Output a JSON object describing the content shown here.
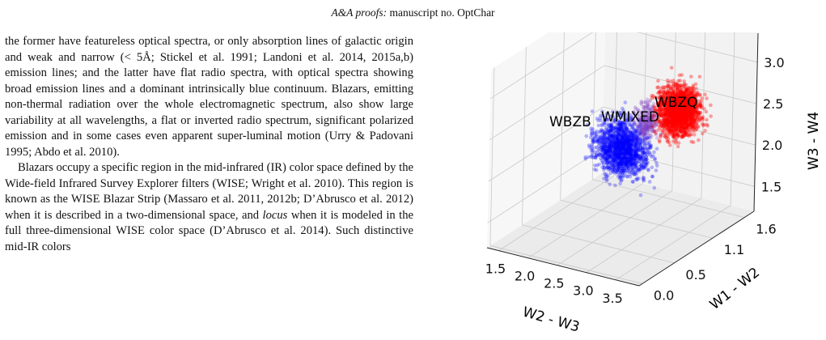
{
  "header": {
    "journal": "A&A proofs:",
    "manuscript": "manuscript no. OptChar"
  },
  "paragraphs": [
    "the former have featureless optical spectra, or only absorption lines of galactic origin and weak and narrow (< 5Å; Stickel et al. 1991; Landoni et al. 2014, 2015a,b) emission lines; and the latter have flat radio spectra, with optical spectra showing broad emission lines and a dominant intrinsically blue continuum. Blazars, emitting non-thermal radiation over the whole electromagnetic spectrum, also show large variability at all wavelengths, a flat or inverted radio spectrum, significant polarized emission and in some cases even apparent super-luminal motion (Urry & Padovani 1995; Abdo et al. 2010).",
    "Blazars occupy a specific region in the mid-infrared (IR) color space defined by the Wide-field Infrared Survey Explorer filters (WISE; Wright et al. 2010). This region is known as the WISE Blazar Strip (Massaro et al. 2011, 2012b; D’Abrusco et al. 2012) when it is described in a two-dimensional space, and ",
    "locus",
    " when it is modeled in the full three-dimensional WISE color space (D’Abrusco et al. 2014). Such distinctive mid-IR colors"
  ],
  "chart_data": {
    "type": "scatter",
    "projection": "3d",
    "xlabel": "W2 - W3",
    "ylabel": "W1 - W2",
    "zlabel": "W3 - W4",
    "x_ticks": [
      "1.5",
      "2.0",
      "2.5",
      "3.0",
      "3.5"
    ],
    "y_ticks": [
      "0.0",
      "0.5",
      "1.1",
      "1.6"
    ],
    "z_ticks": [
      "1.5",
      "2.0",
      "2.5",
      "3.0"
    ],
    "grid": true,
    "series": [
      {
        "name": "WBZB",
        "color": "#0000ff",
        "x_range": [
          1.8,
          3.3
        ],
        "y_range": [
          0.6,
          1.2
        ],
        "z_range": [
          1.6,
          2.7
        ]
      },
      {
        "name": "WMIXED",
        "color": "#8040c0",
        "x_range": [
          2.7,
          3.2
        ],
        "y_range": [
          0.7,
          1.1
        ],
        "z_range": [
          2.2,
          2.9
        ]
      },
      {
        "name": "WBZQ",
        "color": "#ff0000",
        "x_range": [
          2.9,
          3.9
        ],
        "y_range": [
          0.7,
          1.3
        ],
        "z_range": [
          2.2,
          3.2
        ]
      }
    ]
  }
}
